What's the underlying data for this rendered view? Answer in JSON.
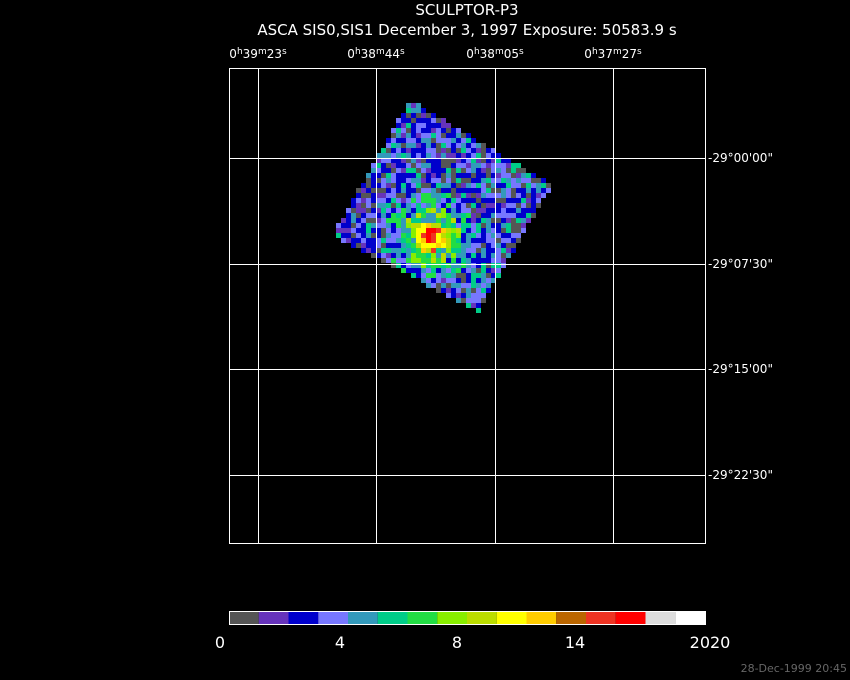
{
  "title": "SCULPTOR-P3",
  "subtitle": "ASCA SIS0,SIS1 December 3, 1997 Exposure: 50583.9 s",
  "ra_labels": [
    [
      "0",
      "h",
      "39",
      "m",
      "23",
      "s"
    ],
    [
      "0",
      "h",
      "38",
      "m",
      "44",
      "s"
    ],
    [
      "0",
      "h",
      "38",
      "m",
      "05",
      "s"
    ],
    [
      "0",
      "h",
      "37",
      "m",
      "27",
      "s"
    ]
  ],
  "dec_labels": [
    "-29°00'00\"",
    "-29°07'30\"",
    "-29°15'00\"",
    "-29°22'30\""
  ],
  "colorbar": {
    "labels": [
      0,
      4,
      8,
      14,
      2020
    ],
    "colors": [
      "#555555",
      "#6633bb",
      "#0000cc",
      "#7777ff",
      "#3399bb",
      "#00cc88",
      "#22dd44",
      "#88ee00",
      "#bbdd00",
      "#ffff00",
      "#ffcc00",
      "#bb6600",
      "#ee3322",
      "#ff0000",
      "#dddddd",
      "#ffffff"
    ]
  },
  "timestamp": "28-Dec-1999 20:45"
}
